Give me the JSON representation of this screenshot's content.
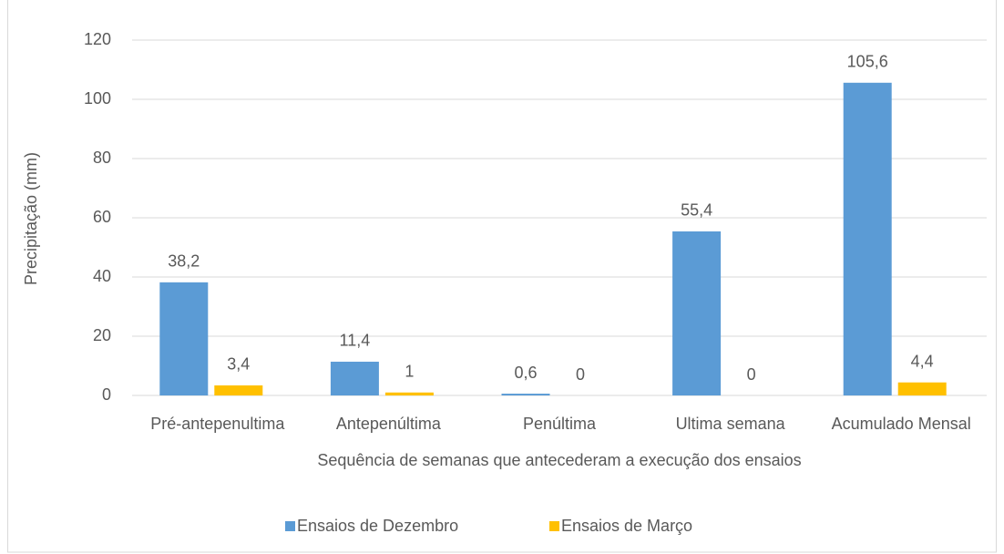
{
  "chart_data": {
    "type": "bar",
    "categories": [
      "Pré-antepenultima",
      "Antepenúltima",
      "Penúltima",
      "Ultima semana",
      "Acumulado Mensal"
    ],
    "series": [
      {
        "name": "Ensaios de Dezembro",
        "color": "#5b9bd5",
        "values": [
          38.2,
          11.4,
          0.6,
          55.4,
          105.6
        ],
        "value_labels": [
          "38,2",
          "11,4",
          "0,6",
          "55,4",
          "105,6"
        ]
      },
      {
        "name": "Ensaios de Março",
        "color": "#ffc000",
        "values": [
          3.4,
          1,
          0,
          0,
          4.4
        ],
        "value_labels": [
          "3,4",
          "1",
          "0",
          "0",
          "4,4"
        ]
      }
    ],
    "xlabel": "Sequência de semanas que antecederam a execução dos ensaios",
    "ylabel": "Precipitação (mm)",
    "ylim": [
      0,
      120
    ],
    "yticks": [
      0,
      20,
      40,
      60,
      80,
      100,
      120
    ],
    "grid": true,
    "legend": "bottom"
  }
}
